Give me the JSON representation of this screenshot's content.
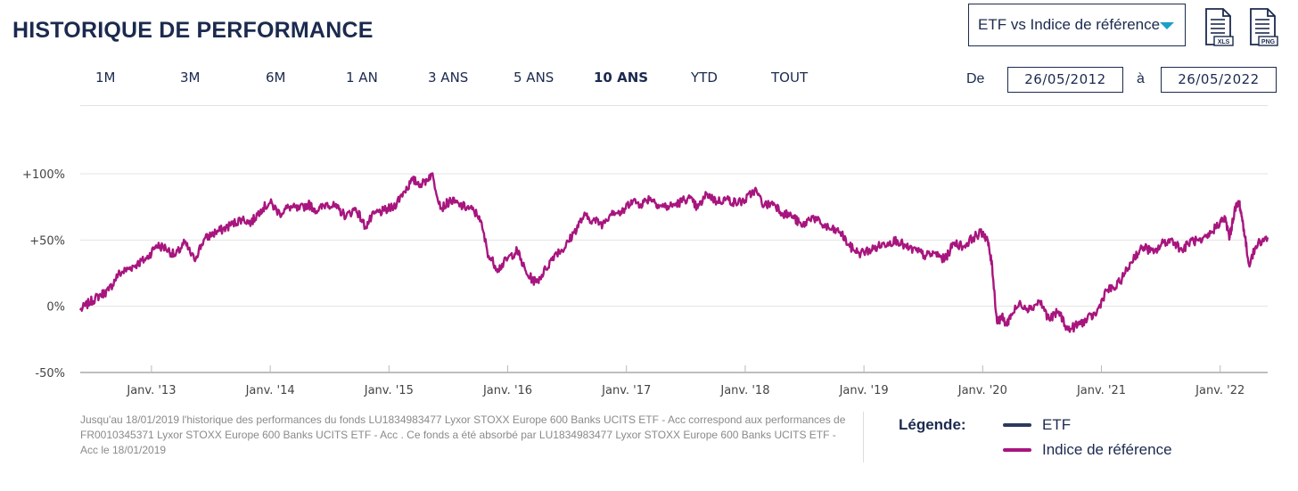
{
  "header": {
    "title": "HISTORIQUE DE PERFORMANCE",
    "select_value": "ETF vs Indice de référence",
    "download_xls_label": "XLS",
    "download_png_label": "PNG"
  },
  "periods": [
    "1M",
    "3M",
    "6M",
    "1 AN",
    "3 ANS",
    "5 ANS",
    "10 ANS",
    "YTD",
    "TOUT"
  ],
  "active_period": "10 ANS",
  "date_range": {
    "from_label": "De",
    "from": "26/05/2012",
    "to_label": "à",
    "to": "26/05/2022"
  },
  "footnote": "Jusqu'au 18/01/2019 l'historique des performances du fonds LU1834983477 Lyxor STOXX Europe 600 Banks UCITS ETF - Acc correspond aux performances de FR0010345371 Lyxor STOXX Europe 600 Banks UCITS ETF - Acc . Ce fonds a été absorbé par LU1834983477 Lyxor STOXX Europe 600 Banks UCITS ETF - Acc le 18/01/2019",
  "legend": {
    "title": "Légende:",
    "items": [
      {
        "label": "ETF",
        "color": "#2b3a5c"
      },
      {
        "label": "Indice de référence",
        "color": "#a8157e"
      }
    ]
  },
  "chart_data": {
    "type": "line",
    "ylim": [
      -50,
      100
    ],
    "yticks": [
      {
        "value": 100,
        "label": "+100%"
      },
      {
        "value": 50,
        "label": "+50%"
      },
      {
        "value": 0,
        "label": "0%"
      },
      {
        "value": -50,
        "label": "-50%"
      }
    ],
    "xlim": [
      2012.4,
      2022.4
    ],
    "xticks": [
      {
        "value": 2013,
        "label": "Janv. '13"
      },
      {
        "value": 2014,
        "label": "Janv. '14"
      },
      {
        "value": 2015,
        "label": "Janv. '15"
      },
      {
        "value": 2016,
        "label": "Janv. '16"
      },
      {
        "value": 2017,
        "label": "Janv. '17"
      },
      {
        "value": 2018,
        "label": "Janv. '18"
      },
      {
        "value": 2019,
        "label": "Janv. '19"
      },
      {
        "value": 2020,
        "label": "Janv. '20"
      },
      {
        "value": 2021,
        "label": "Janv. '21"
      },
      {
        "value": 2022,
        "label": "Janv. '22"
      }
    ],
    "grid": true,
    "series": [
      {
        "name": "Indice de référence",
        "color": "#a8157e",
        "x": [
          2012.4,
          2012.48,
          2012.56,
          2012.64,
          2012.72,
          2012.8,
          2012.88,
          2012.96,
          2013.04,
          2013.12,
          2013.2,
          2013.28,
          2013.36,
          2013.44,
          2013.52,
          2013.6,
          2013.68,
          2013.76,
          2013.84,
          2013.92,
          2014.0,
          2014.08,
          2014.16,
          2014.24,
          2014.32,
          2014.4,
          2014.48,
          2014.56,
          2014.64,
          2014.72,
          2014.8,
          2014.88,
          2014.96,
          2015.04,
          2015.12,
          2015.2,
          2015.28,
          2015.36,
          2015.44,
          2015.52,
          2015.6,
          2015.68,
          2015.76,
          2015.84,
          2015.92,
          2016.0,
          2016.08,
          2016.16,
          2016.24,
          2016.32,
          2016.4,
          2016.48,
          2016.56,
          2016.64,
          2016.72,
          2016.8,
          2016.88,
          2016.96,
          2017.04,
          2017.12,
          2017.2,
          2017.28,
          2017.36,
          2017.44,
          2017.52,
          2017.6,
          2017.68,
          2017.76,
          2017.84,
          2017.92,
          2018.0,
          2018.08,
          2018.16,
          2018.24,
          2018.32,
          2018.4,
          2018.48,
          2018.56,
          2018.64,
          2018.72,
          2018.8,
          2018.88,
          2018.96,
          2019.04,
          2019.12,
          2019.2,
          2019.28,
          2019.36,
          2019.44,
          2019.52,
          2019.6,
          2019.68,
          2019.76,
          2019.84,
          2019.92,
          2020.0,
          2020.04,
          2020.08,
          2020.12,
          2020.16,
          2020.2,
          2020.24,
          2020.32,
          2020.4,
          2020.48,
          2020.56,
          2020.64,
          2020.72,
          2020.8,
          2020.88,
          2020.96,
          2021.04,
          2021.12,
          2021.2,
          2021.28,
          2021.36,
          2021.44,
          2021.52,
          2021.6,
          2021.68,
          2021.76,
          2021.84,
          2021.92,
          2022.0,
          2022.04,
          2022.08,
          2022.12,
          2022.16,
          2022.2,
          2022.24,
          2022.32,
          2022.4
        ],
        "y": [
          -3,
          3,
          8,
          12,
          24,
          28,
          32,
          36,
          46,
          44,
          38,
          48,
          35,
          50,
          55,
          58,
          62,
          66,
          63,
          73,
          78,
          70,
          75,
          73,
          77,
          72,
          78,
          74,
          68,
          74,
          60,
          70,
          72,
          75,
          86,
          95,
          92,
          100,
          74,
          80,
          76,
          74,
          68,
          38,
          28,
          36,
          42,
          24,
          18,
          28,
          40,
          44,
          56,
          68,
          65,
          62,
          72,
          70,
          80,
          77,
          82,
          76,
          75,
          78,
          82,
          74,
          85,
          79,
          81,
          78,
          80,
          88,
          76,
          78,
          70,
          68,
          60,
          68,
          62,
          58,
          56,
          45,
          40,
          42,
          45,
          48,
          50,
          44,
          42,
          38,
          40,
          35,
          48,
          45,
          52,
          56,
          50,
          30,
          -12,
          -8,
          -14,
          -6,
          2,
          -2,
          4,
          -10,
          -4,
          -18,
          -14,
          -10,
          -5,
          12,
          14,
          25,
          38,
          45,
          40,
          48,
          50,
          42,
          50,
          48,
          55,
          64,
          66,
          52,
          72,
          79,
          58,
          32,
          48,
          52
        ]
      }
    ]
  }
}
